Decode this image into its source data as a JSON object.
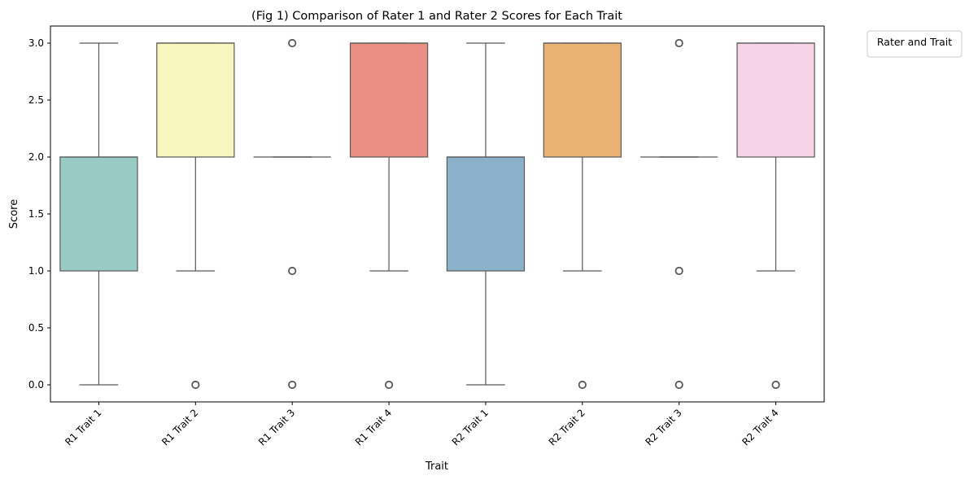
{
  "chart_data": {
    "type": "box",
    "title": "(Fig 1) Comparison of Rater 1 and Rater 2 Scores for Each Trait",
    "xlabel": "Trait",
    "ylabel": "Score",
    "ylim": [
      -0.15,
      3.15
    ],
    "yticks": [
      "0.0",
      "0.5",
      "1.0",
      "1.5",
      "2.0",
      "2.5",
      "3.0"
    ],
    "grid": false,
    "legend": {
      "title": "Rater and Trait",
      "placement": "upper-right-outside",
      "entries": []
    },
    "categories": [
      "R1 Trait 1",
      "R1 Trait 2",
      "R1 Trait 3",
      "R1 Trait 4",
      "R2 Trait 1",
      "R2 Trait 2",
      "R2 Trait 3",
      "R2 Trait 4"
    ],
    "boxes": [
      {
        "label": "R1 Trait 1",
        "whisker_low": 0,
        "q1": 1,
        "median": 2,
        "q3": 2,
        "whisker_high": 3,
        "outliers": [],
        "color": "#98cbc3"
      },
      {
        "label": "R1 Trait 2",
        "whisker_low": 1,
        "q1": 2,
        "median": 3,
        "q3": 3,
        "whisker_high": 3,
        "outliers": [
          0
        ],
        "color": "#f7f6bd"
      },
      {
        "label": "R1 Trait 3",
        "whisker_low": 2,
        "q1": 2,
        "median": 2,
        "q3": 2,
        "whisker_high": 2,
        "outliers": [
          0,
          1,
          3
        ],
        "color": "#bfbad5"
      },
      {
        "label": "R1 Trait 4",
        "whisker_low": 1,
        "q1": 2,
        "median": 3,
        "q3": 3,
        "whisker_high": 3,
        "outliers": [
          0
        ],
        "color": "#e98e83"
      },
      {
        "label": "R2 Trait 1",
        "whisker_low": 0,
        "q1": 1,
        "median": 2,
        "q3": 2,
        "whisker_high": 3,
        "outliers": [],
        "color": "#8ab0ca"
      },
      {
        "label": "R2 Trait 2",
        "whisker_low": 1,
        "q1": 2,
        "median": 3,
        "q3": 3,
        "whisker_high": 3,
        "outliers": [
          0
        ],
        "color": "#eab375"
      },
      {
        "label": "R2 Trait 3",
        "whisker_low": 2,
        "q1": 2,
        "median": 2,
        "q3": 2,
        "whisker_high": 2,
        "outliers": [
          0,
          1,
          3
        ],
        "color": "#b8d88a"
      },
      {
        "label": "R2 Trait 4",
        "whisker_low": 1,
        "q1": 2,
        "median": 3,
        "q3": 3,
        "whisker_high": 3,
        "outliers": [
          0
        ],
        "color": "#f6d3e6"
      }
    ],
    "line_color": "#595959"
  }
}
